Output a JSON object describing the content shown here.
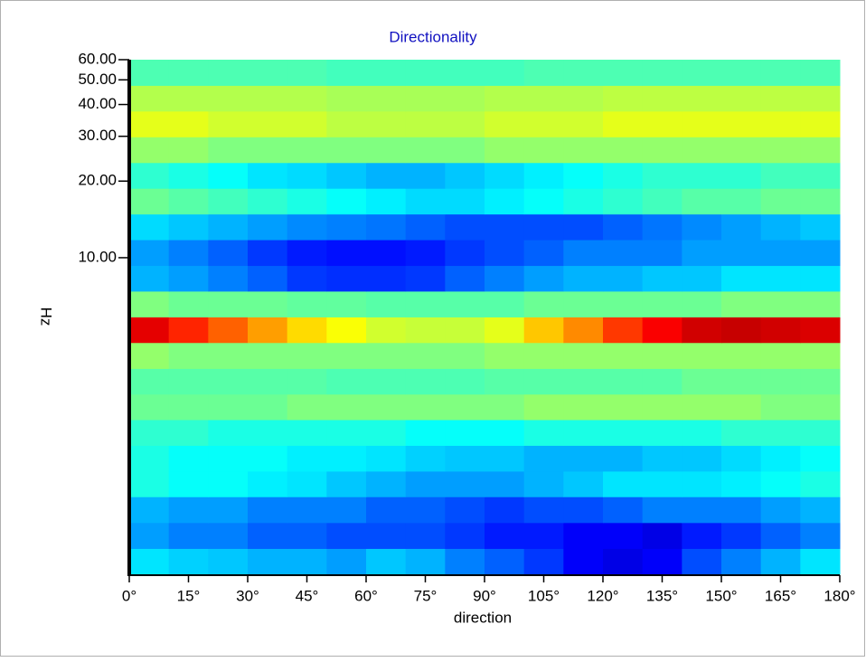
{
  "chart_data": {
    "type": "heatmap",
    "title": "Directionality",
    "xlabel": "direction",
    "ylabel": "Hz",
    "colormap": "jet",
    "zlim": [
      0,
      100
    ],
    "log_y": true,
    "xlim": [
      0,
      180
    ],
    "ylim": [
      0.57,
      60
    ],
    "xticks": [
      {
        "value": 0,
        "label": "0°"
      },
      {
        "value": 15,
        "label": "15°"
      },
      {
        "value": 30,
        "label": "30°"
      },
      {
        "value": 45,
        "label": "45°"
      },
      {
        "value": 60,
        "label": "60°"
      },
      {
        "value": 75,
        "label": "75°"
      },
      {
        "value": 90,
        "label": "90°"
      },
      {
        "value": 105,
        "label": "105°"
      },
      {
        "value": 120,
        "label": "120°"
      },
      {
        "value": 135,
        "label": "135°"
      },
      {
        "value": 150,
        "label": "150°"
      },
      {
        "value": 165,
        "label": "165°"
      },
      {
        "value": 180,
        "label": "180°"
      }
    ],
    "yticks": [
      {
        "value": 10,
        "label": "10.00"
      },
      {
        "value": 20,
        "label": "20.00"
      },
      {
        "value": 30,
        "label": "30.00"
      },
      {
        "value": 40,
        "label": "40.00"
      },
      {
        "value": 50,
        "label": "50.00"
      },
      {
        "value": 60,
        "label": "60.00"
      }
    ],
    "x_edges": [
      0,
      10,
      20,
      30,
      40,
      50,
      60,
      70,
      80,
      90,
      100,
      110,
      120,
      130,
      140,
      150,
      160,
      170,
      180
    ],
    "y_edges": [
      0.57,
      0.72,
      0.91,
      1.15,
      1.45,
      1.83,
      2.31,
      2.91,
      3.67,
      4.64,
      5.85,
      7.39,
      9.32,
      11.77,
      14.85,
      18.74,
      23.65,
      29.85,
      37.68,
      47.55,
      60
    ],
    "z": [
      [
        35,
        33,
        32,
        30,
        30,
        28,
        32,
        30,
        25,
        22,
        18,
        12,
        10,
        12,
        20,
        25,
        30,
        35
      ],
      [
        28,
        25,
        25,
        22,
        22,
        20,
        20,
        20,
        18,
        15,
        15,
        12,
        12,
        10,
        15,
        18,
        22,
        25
      ],
      [
        30,
        28,
        28,
        25,
        25,
        25,
        22,
        22,
        20,
        18,
        20,
        20,
        22,
        25,
        25,
        25,
        28,
        30
      ],
      [
        40,
        38,
        38,
        36,
        35,
        32,
        30,
        28,
        28,
        28,
        30,
        32,
        35,
        35,
        35,
        36,
        38,
        40
      ],
      [
        40,
        38,
        38,
        38,
        36,
        36,
        35,
        33,
        32,
        32,
        30,
        30,
        30,
        32,
        32,
        34,
        36,
        38
      ],
      [
        42,
        42,
        40,
        40,
        40,
        40,
        40,
        38,
        38,
        38,
        40,
        40,
        40,
        40,
        40,
        42,
        42,
        42
      ],
      [
        48,
        48,
        48,
        48,
        50,
        50,
        50,
        50,
        50,
        50,
        52,
        52,
        52,
        52,
        52,
        52,
        50,
        50
      ],
      [
        46,
        46,
        46,
        46,
        46,
        45,
        45,
        45,
        45,
        46,
        46,
        46,
        46,
        46,
        48,
        48,
        48,
        48
      ],
      [
        52,
        50,
        50,
        50,
        50,
        50,
        50,
        50,
        50,
        52,
        52,
        52,
        52,
        52,
        52,
        52,
        52,
        52
      ],
      [
        90,
        84,
        78,
        72,
        66,
        62,
        58,
        57,
        57,
        60,
        68,
        74,
        82,
        88,
        92,
        93,
        92,
        91
      ],
      [
        50,
        48,
        48,
        48,
        47,
        47,
        46,
        46,
        46,
        46,
        48,
        48,
        48,
        48,
        48,
        50,
        50,
        50
      ],
      [
        30,
        28,
        25,
        22,
        18,
        17,
        17,
        18,
        22,
        25,
        28,
        30,
        30,
        32,
        32,
        35,
        35,
        35
      ],
      [
        28,
        25,
        22,
        18,
        15,
        14,
        14,
        15,
        18,
        20,
        22,
        25,
        25,
        25,
        28,
        28,
        28,
        28
      ],
      [
        34,
        32,
        30,
        28,
        26,
        25,
        24,
        22,
        20,
        20,
        20,
        20,
        22,
        24,
        26,
        28,
        30,
        32
      ],
      [
        48,
        46,
        44,
        42,
        40,
        38,
        36,
        34,
        34,
        36,
        38,
        40,
        42,
        44,
        46,
        46,
        48,
        48
      ],
      [
        42,
        40,
        38,
        35,
        34,
        32,
        30,
        30,
        32,
        34,
        36,
        38,
        40,
        42,
        42,
        42,
        44,
        44
      ],
      [
        52,
        52,
        50,
        50,
        50,
        50,
        50,
        50,
        50,
        52,
        52,
        52,
        52,
        52,
        52,
        52,
        52,
        52
      ],
      [
        60,
        60,
        58,
        58,
        58,
        56,
        56,
        56,
        56,
        58,
        58,
        58,
        60,
        60,
        60,
        60,
        60,
        60
      ],
      [
        55,
        55,
        55,
        55,
        55,
        54,
        54,
        54,
        54,
        55,
        55,
        55,
        56,
        56,
        56,
        56,
        56,
        56
      ],
      [
        45,
        45,
        45,
        45,
        45,
        44,
        44,
        44,
        44,
        44,
        45,
        45,
        45,
        45,
        45,
        45,
        45,
        45
      ]
    ]
  }
}
